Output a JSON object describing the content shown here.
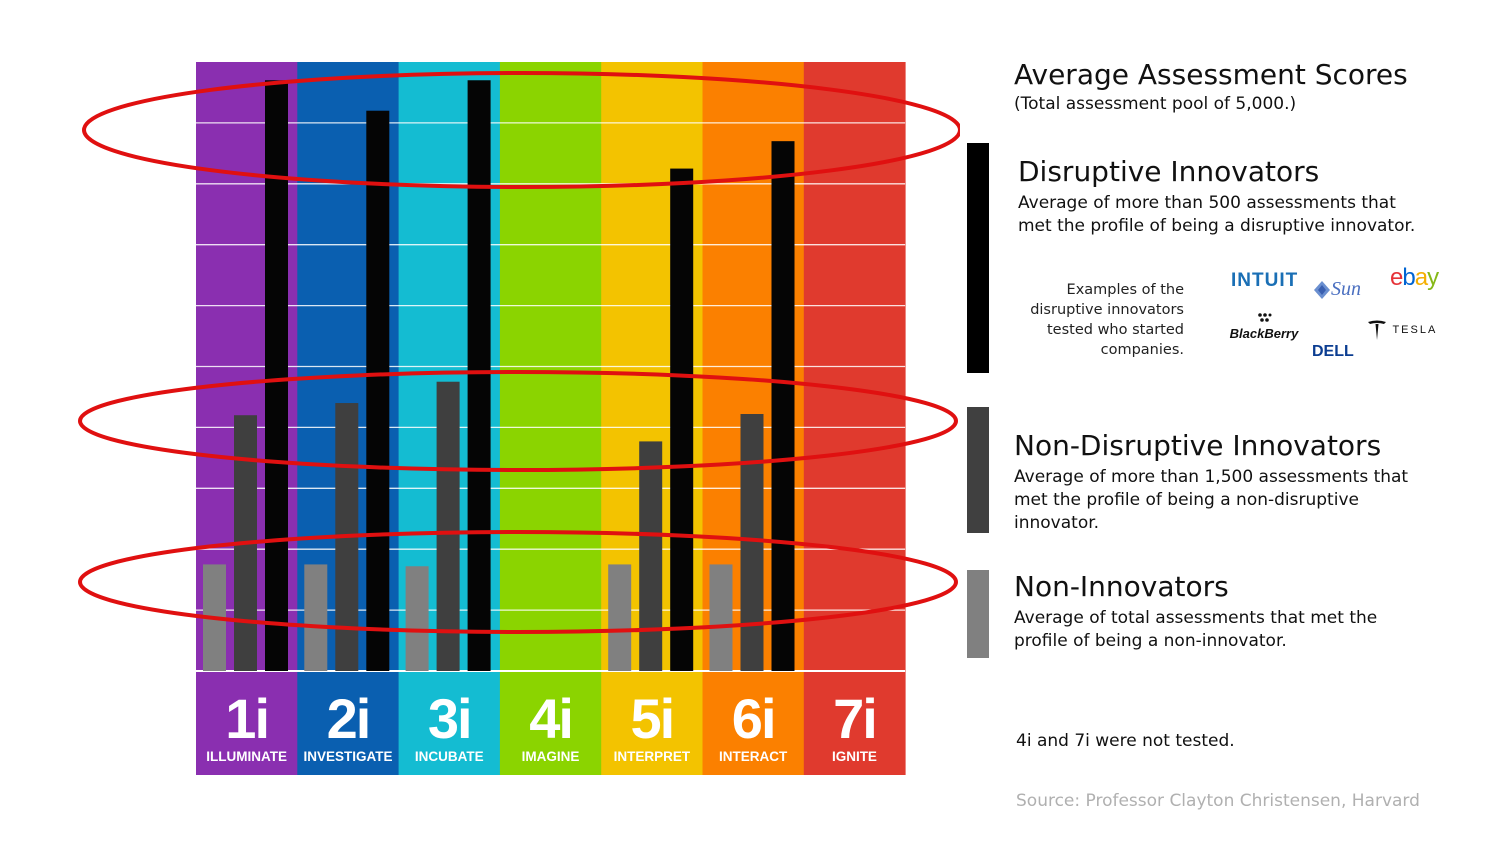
{
  "chart_data": {
    "type": "bar",
    "title": "Average Assessment Scores",
    "subtitle": "(Total assessment pool of 5,000.)",
    "categories": [
      {
        "code": "1i",
        "name": "ILLUMINATE",
        "color": "#8a2fb0"
      },
      {
        "code": "2i",
        "name": "INVESTIGATE",
        "color": "#0a5fb0"
      },
      {
        "code": "3i",
        "name": "INCUBATE",
        "color": "#14bcd2"
      },
      {
        "code": "4i",
        "name": "IMAGINE",
        "color": "#8bd400"
      },
      {
        "code": "5i",
        "name": "INTERPRET",
        "color": "#f3c300"
      },
      {
        "code": "6i",
        "name": "INTERACT",
        "color": "#fb8000"
      },
      {
        "code": "7i",
        "name": "IGNITE",
        "color": "#e03a2e"
      }
    ],
    "series": [
      {
        "name": "Non-Innovators",
        "color": "#808080",
        "values": [
          1.75,
          1.75,
          1.72,
          null,
          1.75,
          1.75,
          null
        ]
      },
      {
        "name": "Non-Disruptive Innovators",
        "color": "#3f3f3f",
        "values": [
          4.2,
          4.4,
          4.75,
          null,
          3.77,
          4.22,
          null
        ]
      },
      {
        "name": "Disruptive Innovators",
        "color": "#050505",
        "values": [
          9.7,
          9.2,
          9.7,
          null,
          8.25,
          8.7,
          null
        ]
      }
    ],
    "ylim": [
      0,
      10
    ],
    "grid": true,
    "highlight_ellipses": 3
  },
  "legend": [
    {
      "name": "Disruptive Innovators",
      "desc": "Average of more than 500 assessments that met the profile of being a disruptive innovator.",
      "color": "#000000"
    },
    {
      "name": "Non-Disruptive Innovators",
      "desc": "Average of more than 1,500 assessments that met the profile of being a non-disruptive innovator.",
      "color": "#404040"
    },
    {
      "name": "Non-Innovators",
      "desc": "Average of total assessments that met the profile of being a non-innovator.",
      "color": "#808080"
    }
  ],
  "examples_text": "Examples of the disruptive innovators tested who started companies.",
  "logos": {
    "intuit": "INTUIT",
    "sun": "Sun",
    "ebay_e": "e",
    "ebay_b": "b",
    "ebay_a": "a",
    "ebay_y": "y",
    "blackberry": "BlackBerry",
    "tesla": "TESLA",
    "dell": "DELL"
  },
  "note": "4i and 7i were not tested.",
  "source": "Source: Professor Clayton Christensen, Harvard"
}
